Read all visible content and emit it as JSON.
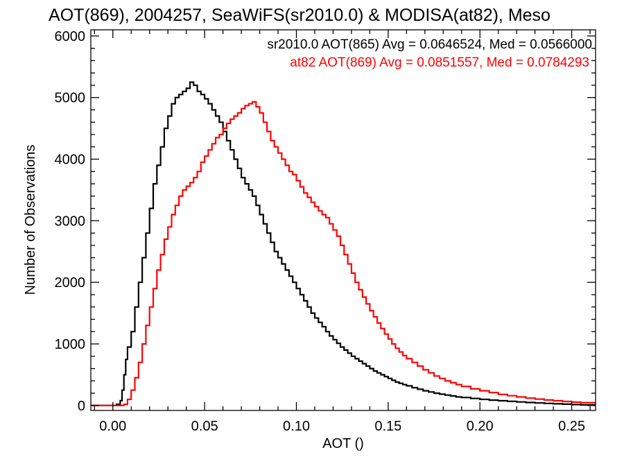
{
  "chart_data": {
    "type": "line",
    "step": true,
    "title": "AOT(869), 2004257, SeaWiFS(sr2010.0) & MODISA(at82), Meso",
    "xlabel": "AOT ()",
    "ylabel": "Number of Observations",
    "xlim": [
      -0.012,
      0.263
    ],
    "ylim": [
      -80,
      6100
    ],
    "xticks": [
      0.0,
      0.05,
      0.1,
      0.15,
      0.2,
      0.25
    ],
    "xtick_labels": [
      "0.00",
      "0.05",
      "0.10",
      "0.15",
      "0.20",
      "0.25"
    ],
    "yticks": [
      0,
      1000,
      2000,
      3000,
      4000,
      5000,
      6000
    ],
    "ytick_labels": [
      "0",
      "1000",
      "2000",
      "3000",
      "4000",
      "5000",
      "6000"
    ],
    "legend": [
      {
        "text": "sr2010.0 AOT(865) Avg = 0.0646524, Med = 0.0566000",
        "color": "#000000"
      },
      {
        "text": "at82 AOT(869) Avg = 0.0851557, Med = 0.0784293",
        "color": "#ff0000"
      }
    ],
    "series": [
      {
        "color": "#000000",
        "points": [
          [
            -0.012,
            0
          ],
          [
            0.0,
            0
          ],
          [
            0.002,
            20
          ],
          [
            0.004,
            80
          ],
          [
            0.005,
            250
          ],
          [
            0.006,
            500
          ],
          [
            0.007,
            750
          ],
          [
            0.008,
            950
          ],
          [
            0.01,
            1200
          ],
          [
            0.012,
            1600
          ],
          [
            0.014,
            2000
          ],
          [
            0.016,
            2400
          ],
          [
            0.018,
            2800
          ],
          [
            0.02,
            3200
          ],
          [
            0.022,
            3600
          ],
          [
            0.024,
            3900
          ],
          [
            0.026,
            4200
          ],
          [
            0.028,
            4500
          ],
          [
            0.03,
            4700
          ],
          [
            0.032,
            4900
          ],
          [
            0.034,
            5000
          ],
          [
            0.036,
            5050
          ],
          [
            0.038,
            5100
          ],
          [
            0.04,
            5150
          ],
          [
            0.042,
            5250
          ],
          [
            0.044,
            5200
          ],
          [
            0.046,
            5100
          ],
          [
            0.048,
            5050
          ],
          [
            0.05,
            4980
          ],
          [
            0.052,
            4900
          ],
          [
            0.054,
            4800
          ],
          [
            0.056,
            4700
          ],
          [
            0.058,
            4600
          ],
          [
            0.06,
            4450
          ],
          [
            0.062,
            4300
          ],
          [
            0.064,
            4150
          ],
          [
            0.066,
            4000
          ],
          [
            0.068,
            3850
          ],
          [
            0.07,
            3700
          ],
          [
            0.072,
            3600
          ],
          [
            0.074,
            3500
          ],
          [
            0.076,
            3400
          ],
          [
            0.078,
            3250
          ],
          [
            0.08,
            3100
          ],
          [
            0.082,
            2950
          ],
          [
            0.084,
            2800
          ],
          [
            0.086,
            2650
          ],
          [
            0.088,
            2500
          ],
          [
            0.09,
            2400
          ],
          [
            0.092,
            2300
          ],
          [
            0.094,
            2200
          ],
          [
            0.096,
            2100
          ],
          [
            0.098,
            2000
          ],
          [
            0.1,
            1900
          ],
          [
            0.102,
            1800
          ],
          [
            0.104,
            1700
          ],
          [
            0.106,
            1600
          ],
          [
            0.108,
            1500
          ],
          [
            0.11,
            1420
          ],
          [
            0.112,
            1350
          ],
          [
            0.114,
            1280
          ],
          [
            0.116,
            1200
          ],
          [
            0.118,
            1130
          ],
          [
            0.12,
            1070
          ],
          [
            0.122,
            1010
          ],
          [
            0.124,
            950
          ],
          [
            0.126,
            900
          ],
          [
            0.128,
            850
          ],
          [
            0.13,
            800
          ],
          [
            0.132,
            760
          ],
          [
            0.134,
            720
          ],
          [
            0.136,
            680
          ],
          [
            0.138,
            640
          ],
          [
            0.14,
            600
          ],
          [
            0.142,
            560
          ],
          [
            0.144,
            530
          ],
          [
            0.146,
            500
          ],
          [
            0.148,
            470
          ],
          [
            0.15,
            440
          ],
          [
            0.152,
            410
          ],
          [
            0.154,
            380
          ],
          [
            0.156,
            360
          ],
          [
            0.158,
            340
          ],
          [
            0.16,
            320
          ],
          [
            0.163,
            290
          ],
          [
            0.166,
            265
          ],
          [
            0.169,
            240
          ],
          [
            0.172,
            220
          ],
          [
            0.175,
            200
          ],
          [
            0.178,
            185
          ],
          [
            0.181,
            170
          ],
          [
            0.184,
            155
          ],
          [
            0.187,
            140
          ],
          [
            0.19,
            130
          ],
          [
            0.195,
            115
          ],
          [
            0.2,
            100
          ],
          [
            0.205,
            88
          ],
          [
            0.21,
            78
          ],
          [
            0.215,
            68
          ],
          [
            0.22,
            58
          ],
          [
            0.225,
            50
          ],
          [
            0.23,
            42
          ],
          [
            0.235,
            35
          ],
          [
            0.24,
            28
          ],
          [
            0.245,
            22
          ],
          [
            0.25,
            16
          ],
          [
            0.255,
            10
          ],
          [
            0.263,
            5
          ]
        ]
      },
      {
        "color": "#ff0000",
        "points": [
          [
            -0.012,
            0
          ],
          [
            0.004,
            0
          ],
          [
            0.006,
            20
          ],
          [
            0.008,
            100
          ],
          [
            0.01,
            250
          ],
          [
            0.012,
            450
          ],
          [
            0.014,
            700
          ],
          [
            0.016,
            1000
          ],
          [
            0.018,
            1300
          ],
          [
            0.02,
            1600
          ],
          [
            0.022,
            1900
          ],
          [
            0.024,
            2200
          ],
          [
            0.026,
            2450
          ],
          [
            0.028,
            2700
          ],
          [
            0.03,
            2900
          ],
          [
            0.032,
            3100
          ],
          [
            0.034,
            3250
          ],
          [
            0.036,
            3400
          ],
          [
            0.038,
            3500
          ],
          [
            0.04,
            3560
          ],
          [
            0.042,
            3620
          ],
          [
            0.044,
            3700
          ],
          [
            0.046,
            3800
          ],
          [
            0.048,
            3950
          ],
          [
            0.05,
            4050
          ],
          [
            0.052,
            4150
          ],
          [
            0.054,
            4250
          ],
          [
            0.056,
            4350
          ],
          [
            0.058,
            4400
          ],
          [
            0.06,
            4500
          ],
          [
            0.062,
            4580
          ],
          [
            0.064,
            4650
          ],
          [
            0.066,
            4700
          ],
          [
            0.068,
            4750
          ],
          [
            0.07,
            4820
          ],
          [
            0.072,
            4870
          ],
          [
            0.074,
            4900
          ],
          [
            0.076,
            4930
          ],
          [
            0.078,
            4850
          ],
          [
            0.08,
            4750
          ],
          [
            0.082,
            4600
          ],
          [
            0.084,
            4450
          ],
          [
            0.086,
            4300
          ],
          [
            0.088,
            4200
          ],
          [
            0.09,
            4100
          ],
          [
            0.092,
            4000
          ],
          [
            0.094,
            3900
          ],
          [
            0.096,
            3800
          ],
          [
            0.098,
            3750
          ],
          [
            0.1,
            3650
          ],
          [
            0.102,
            3550
          ],
          [
            0.104,
            3450
          ],
          [
            0.106,
            3380
          ],
          [
            0.108,
            3300
          ],
          [
            0.11,
            3230
          ],
          [
            0.112,
            3160
          ],
          [
            0.114,
            3100
          ],
          [
            0.116,
            3050
          ],
          [
            0.118,
            2950
          ],
          [
            0.12,
            2850
          ],
          [
            0.122,
            2750
          ],
          [
            0.124,
            2600
          ],
          [
            0.126,
            2450
          ],
          [
            0.128,
            2300
          ],
          [
            0.13,
            2150
          ],
          [
            0.132,
            2000
          ],
          [
            0.134,
            1880
          ],
          [
            0.136,
            1760
          ],
          [
            0.138,
            1650
          ],
          [
            0.14,
            1540
          ],
          [
            0.142,
            1440
          ],
          [
            0.144,
            1340
          ],
          [
            0.146,
            1250
          ],
          [
            0.148,
            1160
          ],
          [
            0.15,
            1080
          ],
          [
            0.152,
            1000
          ],
          [
            0.154,
            930
          ],
          [
            0.156,
            870
          ],
          [
            0.158,
            810
          ],
          [
            0.16,
            760
          ],
          [
            0.163,
            700
          ],
          [
            0.166,
            640
          ],
          [
            0.169,
            580
          ],
          [
            0.172,
            530
          ],
          [
            0.175,
            480
          ],
          [
            0.178,
            440
          ],
          [
            0.181,
            400
          ],
          [
            0.184,
            370
          ],
          [
            0.187,
            340
          ],
          [
            0.19,
            310
          ],
          [
            0.195,
            270
          ],
          [
            0.2,
            240
          ],
          [
            0.205,
            210
          ],
          [
            0.21,
            180
          ],
          [
            0.215,
            160
          ],
          [
            0.22,
            140
          ],
          [
            0.225,
            120
          ],
          [
            0.23,
            105
          ],
          [
            0.235,
            90
          ],
          [
            0.24,
            78
          ],
          [
            0.245,
            66
          ],
          [
            0.25,
            55
          ],
          [
            0.255,
            45
          ],
          [
            0.263,
            35
          ]
        ]
      }
    ]
  }
}
